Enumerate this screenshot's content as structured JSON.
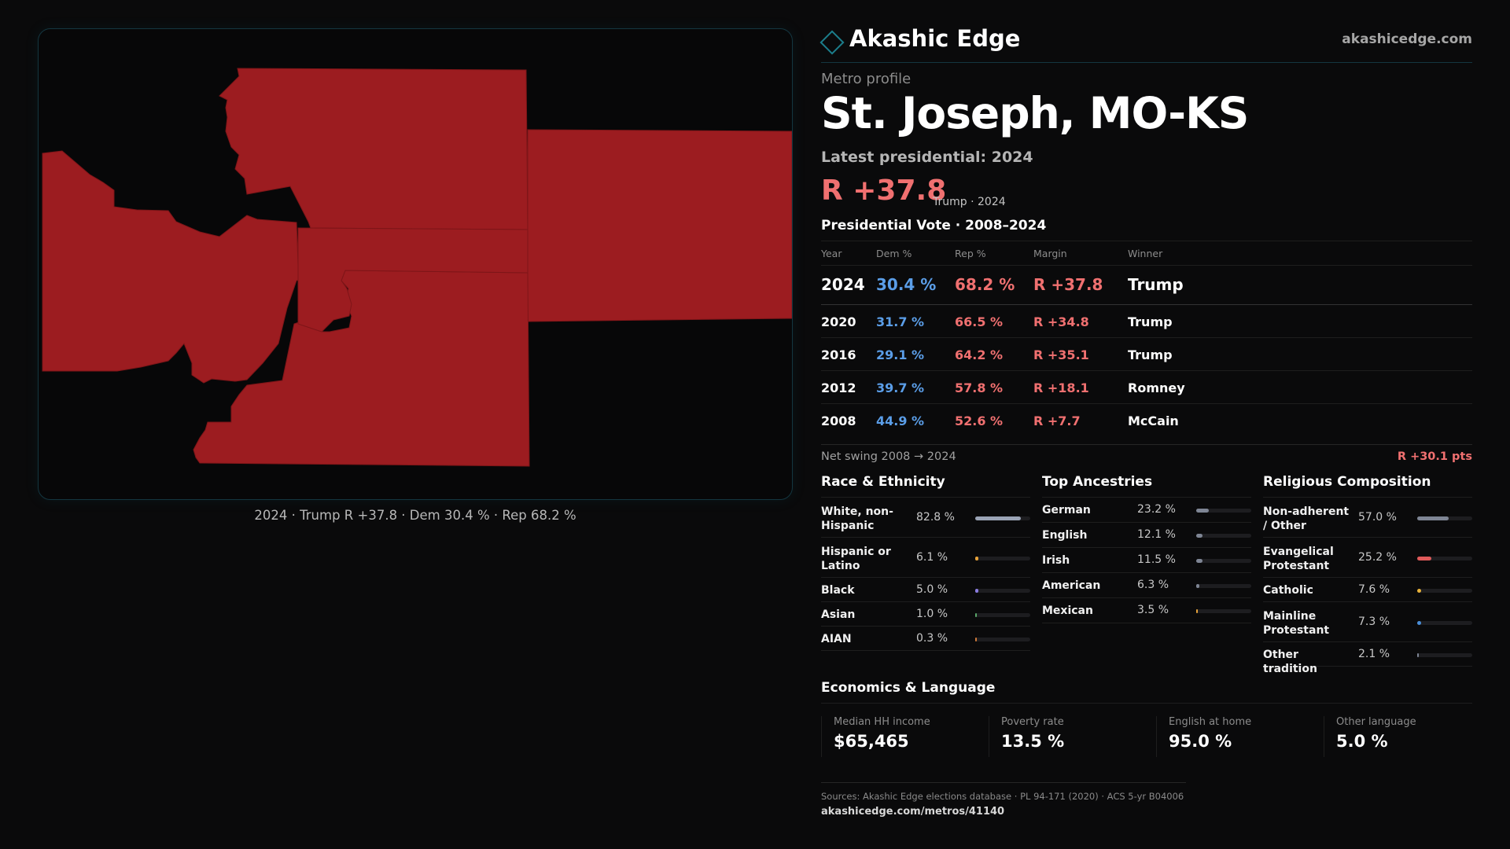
{
  "map": {
    "caption": "2024 · Trump R +37.8 · Dem 30.4 % · Rep 68.2 %",
    "fill_color": "#9c1c20"
  },
  "header": {
    "brand": "Akashic Edge",
    "site": "akashicedge.com",
    "logo_icon": "diamond-outline-icon"
  },
  "profile": {
    "eyebrow": "Metro profile",
    "title": "St. Joseph, MO-KS",
    "latest_label": "Latest presidential: 2024",
    "margin": "R +37.8",
    "margin_sub": "Trump · 2024"
  },
  "vote": {
    "title": "Presidential Vote · 2008–2024",
    "headers": {
      "year": "Year",
      "dem": "Dem %",
      "rep": "Rep %",
      "margin": "Margin",
      "winner": "Winner"
    },
    "rows": [
      {
        "year": "2024",
        "dem": "30.4 %",
        "rep": "68.2 %",
        "margin": "R +37.8",
        "winner": "Trump"
      },
      {
        "year": "2020",
        "dem": "31.7 %",
        "rep": "66.5 %",
        "margin": "R +34.8",
        "winner": "Trump"
      },
      {
        "year": "2016",
        "dem": "29.1 %",
        "rep": "64.2 %",
        "margin": "R +35.1",
        "winner": "Trump"
      },
      {
        "year": "2012",
        "dem": "39.7 %",
        "rep": "57.8 %",
        "margin": "R +18.1",
        "winner": "Romney"
      },
      {
        "year": "2008",
        "dem": "44.9 %",
        "rep": "52.6 %",
        "margin": "R +7.7",
        "winner": "McCain"
      }
    ],
    "swing_label": "Net swing 2008 → 2024",
    "swing_value": "R +30.1 pts"
  },
  "race": {
    "title": "Race & Ethnicity",
    "items": [
      {
        "label": "White, non-Hispanic",
        "value": "82.8 %",
        "share": 0.828,
        "color": "#9aa3b5"
      },
      {
        "label": "Hispanic or Latino",
        "value": "6.1 %",
        "share": 0.061,
        "color": "#e8a33a"
      },
      {
        "label": "Black",
        "value": "5.0 %",
        "share": 0.05,
        "color": "#8a7ce0"
      },
      {
        "label": "Asian",
        "value": "1.0 %",
        "share": 0.01,
        "color": "#5aa86a"
      },
      {
        "label": "AIAN",
        "value": "0.3 %",
        "share": 0.003,
        "color": "#d07a3a"
      }
    ]
  },
  "ancestry": {
    "title": "Top Ancestries",
    "items": [
      {
        "label": "German",
        "value": "23.2 %",
        "share": 0.232,
        "color": "#7e8594"
      },
      {
        "label": "English",
        "value": "12.1 %",
        "share": 0.121,
        "color": "#7e8594"
      },
      {
        "label": "Irish",
        "value": "11.5 %",
        "share": 0.115,
        "color": "#7e8594"
      },
      {
        "label": "American",
        "value": "6.3 %",
        "share": 0.063,
        "color": "#7e8594"
      },
      {
        "label": "Mexican",
        "value": "3.5 %",
        "share": 0.035,
        "color": "#e8a33a"
      }
    ]
  },
  "religion": {
    "title": "Religious Composition",
    "items": [
      {
        "label": "Non-adherent / Other",
        "value": "57.0 %",
        "share": 0.57,
        "color": "#7e8594"
      },
      {
        "label": "Evangelical Protestant",
        "value": "25.2 %",
        "share": 0.252,
        "color": "#e05a5a"
      },
      {
        "label": "Catholic",
        "value": "7.6 %",
        "share": 0.076,
        "color": "#e8b23a"
      },
      {
        "label": "Mainline Protestant",
        "value": "7.3 %",
        "share": 0.073,
        "color": "#4a8ed8"
      },
      {
        "label": "Other tradition",
        "value": "2.1 %",
        "share": 0.021,
        "color": "#7e8594"
      }
    ]
  },
  "economics": {
    "title": "Economics & Language",
    "stats": [
      {
        "label": "Median HH income",
        "value": "$65,465"
      },
      {
        "label": "Poverty rate",
        "value": "13.5 %"
      },
      {
        "label": "English at home",
        "value": "95.0 %"
      },
      {
        "label": "Other language",
        "value": "5.0 %"
      }
    ]
  },
  "footer": {
    "sources": "Sources: Akashic Edge elections database · PL 94-171 (2020) · ACS 5-yr B04006",
    "url": "akashicedge.com/metros/41140"
  }
}
